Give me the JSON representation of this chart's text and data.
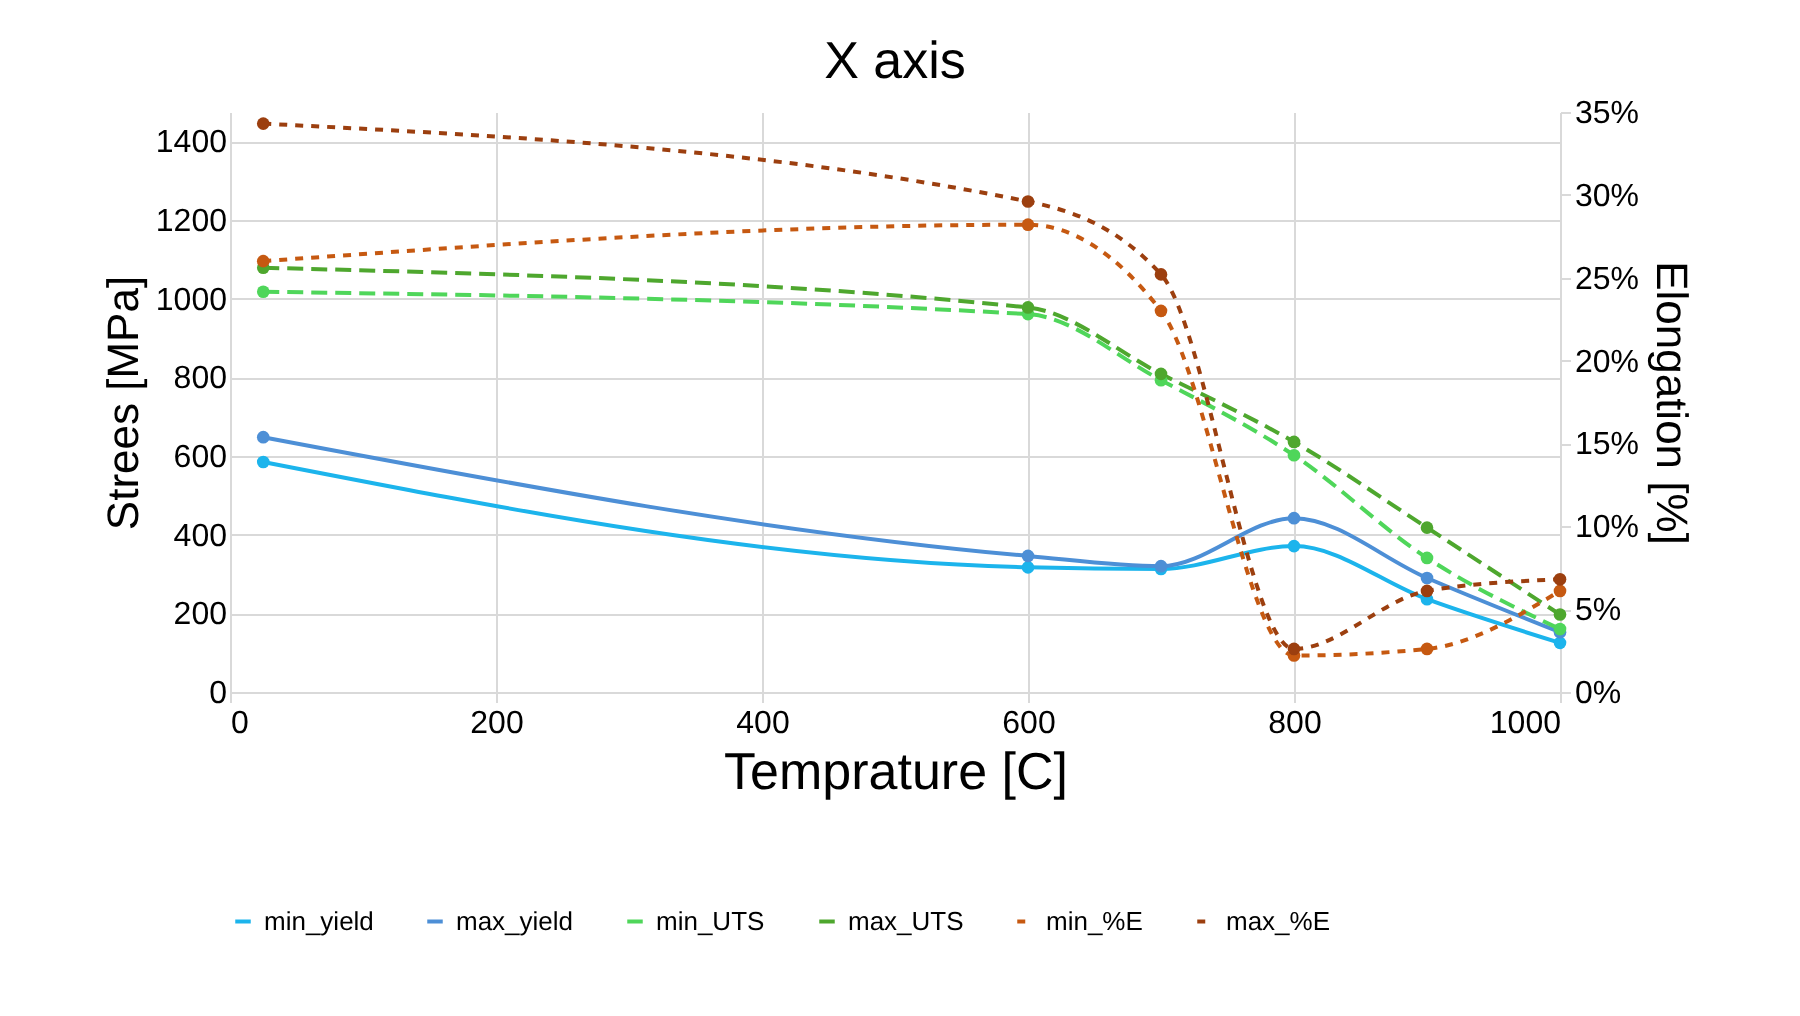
{
  "chart_data": {
    "type": "line",
    "title": "X axis",
    "xlabel": "Temprature [C]",
    "ylabel": "Strees [MPa]",
    "y2label": "Elongation [%]",
    "x": [
      25,
      600,
      700,
      800,
      900,
      1000
    ],
    "xlim": [
      0,
      1000
    ],
    "xticks": [
      0,
      200,
      400,
      600,
      800,
      1000
    ],
    "ylim": [
      0,
      1475
    ],
    "yticks": [
      0,
      200,
      400,
      600,
      800,
      1000,
      1200,
      1400
    ],
    "y2lim": [
      0,
      35
    ],
    "y2ticks": [
      {
        "value": 0,
        "label": "0%"
      },
      {
        "value": 5,
        "label": "5%"
      },
      {
        "value": 10,
        "label": "10%"
      },
      {
        "value": 15,
        "label": "15%"
      },
      {
        "value": 20,
        "label": "20%"
      },
      {
        "value": 25,
        "label": "25%"
      },
      {
        "value": 30,
        "label": "30%"
      },
      {
        "value": 35,
        "label": "35%"
      }
    ],
    "grid": true,
    "legend": "bottom",
    "marker": "circle",
    "series": [
      {
        "name": "min_yield",
        "color": "#1cb4ec",
        "line_style": "solid",
        "values": [
          585,
          317,
          313,
          371,
          236,
          125
        ]
      },
      {
        "name": "max_yield",
        "color": "#4d8fd6",
        "line_style": "solid",
        "values": [
          648,
          346,
          320,
          442,
          290,
          152
        ]
      },
      {
        "name": "min_UTS",
        "color": "#4fd65a",
        "line_style": "dashed",
        "values": [
          1018,
          961,
          793,
          602,
          341,
          160
        ]
      },
      {
        "name": "max_UTS",
        "color": "#4ea72e",
        "line_style": "dashed",
        "values": [
          1079,
          978,
          809,
          636,
          418,
          197
        ]
      },
      {
        "name": "min_%E",
        "color": "#c65911",
        "line_style": "dotted",
        "axis": "y2",
        "values": [
          26.0,
          28.2,
          23.0,
          2.2,
          2.6,
          6.1
        ]
      },
      {
        "name": "max_%E",
        "color": "#9c3f0f",
        "line_style": "dotted",
        "axis": "y2",
        "values": [
          34.3,
          29.6,
          25.2,
          2.6,
          6.1,
          6.8
        ]
      }
    ]
  }
}
